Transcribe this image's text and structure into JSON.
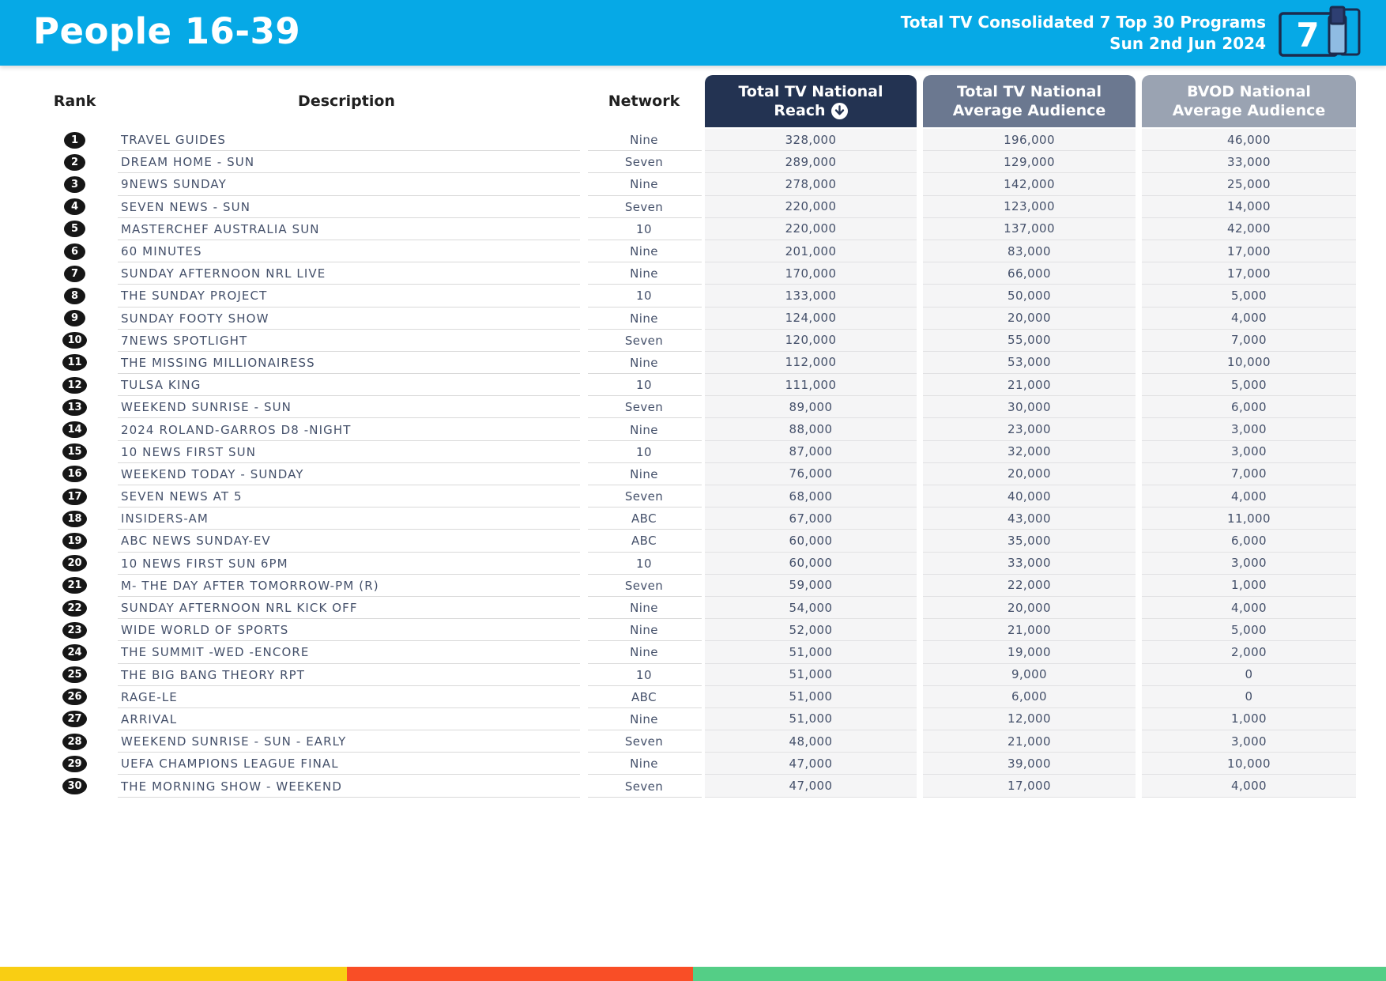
{
  "header": {
    "title": "People 16-39",
    "subtitle_line1": "Total TV Consolidated 7 Top 30 Programs",
    "subtitle_line2": "Sun 2nd Jun 2024",
    "calendar_label": "7"
  },
  "colors": {
    "header_bg": "#06a9e6",
    "reach_header_bg": "#233352",
    "avg_header_bg": "#6b7890",
    "bvod_header_bg": "#9aa3b2",
    "rank_badge_bg": "#161616",
    "cell_bg": "#f5f5f6",
    "footer_yellow": "#f9ce13",
    "footer_red": "#f94e26",
    "footer_green": "#54ce86"
  },
  "table": {
    "columns": {
      "rank": {
        "label": "Rank"
      },
      "description": {
        "label": "Description"
      },
      "network": {
        "label": "Network"
      },
      "reach": {
        "line1": "Total TV National",
        "line2": "Reach"
      },
      "avg": {
        "line1": "Total TV National",
        "line2": "Average Audience"
      },
      "bvod": {
        "line1": "BVOD National",
        "line2": "Average Audience"
      }
    },
    "sort_icon": "circle-arrow-down",
    "rows": [
      {
        "rank": "1",
        "description": "TRAVEL GUIDES",
        "network": "Nine",
        "reach": "328,000",
        "avg": "196,000",
        "bvod": "46,000"
      },
      {
        "rank": "2",
        "description": "DREAM HOME - SUN",
        "network": "Seven",
        "reach": "289,000",
        "avg": "129,000",
        "bvod": "33,000"
      },
      {
        "rank": "3",
        "description": "9NEWS SUNDAY",
        "network": "Nine",
        "reach": "278,000",
        "avg": "142,000",
        "bvod": "25,000"
      },
      {
        "rank": "4",
        "description": "SEVEN NEWS - SUN",
        "network": "Seven",
        "reach": "220,000",
        "avg": "123,000",
        "bvod": "14,000"
      },
      {
        "rank": "5",
        "description": "MASTERCHEF AUSTRALIA SUN",
        "network": "10",
        "reach": "220,000",
        "avg": "137,000",
        "bvod": "42,000"
      },
      {
        "rank": "6",
        "description": "60 MINUTES",
        "network": "Nine",
        "reach": "201,000",
        "avg": "83,000",
        "bvod": "17,000"
      },
      {
        "rank": "7",
        "description": "SUNDAY AFTERNOON NRL LIVE",
        "network": "Nine",
        "reach": "170,000",
        "avg": "66,000",
        "bvod": "17,000"
      },
      {
        "rank": "8",
        "description": "THE SUNDAY PROJECT",
        "network": "10",
        "reach": "133,000",
        "avg": "50,000",
        "bvod": "5,000"
      },
      {
        "rank": "9",
        "description": "SUNDAY FOOTY SHOW",
        "network": "Nine",
        "reach": "124,000",
        "avg": "20,000",
        "bvod": "4,000"
      },
      {
        "rank": "10",
        "description": "7NEWS SPOTLIGHT",
        "network": "Seven",
        "reach": "120,000",
        "avg": "55,000",
        "bvod": "7,000"
      },
      {
        "rank": "11",
        "description": "THE MISSING MILLIONAIRESS",
        "network": "Nine",
        "reach": "112,000",
        "avg": "53,000",
        "bvod": "10,000"
      },
      {
        "rank": "12",
        "description": "TULSA KING",
        "network": "10",
        "reach": "111,000",
        "avg": "21,000",
        "bvod": "5,000"
      },
      {
        "rank": "13",
        "description": "WEEKEND SUNRISE - SUN",
        "network": "Seven",
        "reach": "89,000",
        "avg": "30,000",
        "bvod": "6,000"
      },
      {
        "rank": "14",
        "description": "2024 ROLAND-GARROS D8 -NIGHT",
        "network": "Nine",
        "reach": "88,000",
        "avg": "23,000",
        "bvod": "3,000"
      },
      {
        "rank": "15",
        "description": "10 NEWS FIRST SUN",
        "network": "10",
        "reach": "87,000",
        "avg": "32,000",
        "bvod": "3,000"
      },
      {
        "rank": "16",
        "description": "WEEKEND TODAY - SUNDAY",
        "network": "Nine",
        "reach": "76,000",
        "avg": "20,000",
        "bvod": "7,000"
      },
      {
        "rank": "17",
        "description": "SEVEN NEWS AT 5",
        "network": "Seven",
        "reach": "68,000",
        "avg": "40,000",
        "bvod": "4,000"
      },
      {
        "rank": "18",
        "description": "INSIDERS-AM",
        "network": "ABC",
        "reach": "67,000",
        "avg": "43,000",
        "bvod": "11,000"
      },
      {
        "rank": "19",
        "description": "ABC NEWS SUNDAY-EV",
        "network": "ABC",
        "reach": "60,000",
        "avg": "35,000",
        "bvod": "6,000"
      },
      {
        "rank": "20",
        "description": "10 NEWS FIRST SUN 6PM",
        "network": "10",
        "reach": "60,000",
        "avg": "33,000",
        "bvod": "3,000"
      },
      {
        "rank": "21",
        "description": "M- THE DAY AFTER TOMORROW-PM (R)",
        "network": "Seven",
        "reach": "59,000",
        "avg": "22,000",
        "bvod": "1,000"
      },
      {
        "rank": "22",
        "description": "SUNDAY AFTERNOON NRL KICK OFF",
        "network": "Nine",
        "reach": "54,000",
        "avg": "20,000",
        "bvod": "4,000"
      },
      {
        "rank": "23",
        "description": "WIDE WORLD OF SPORTS",
        "network": "Nine",
        "reach": "52,000",
        "avg": "21,000",
        "bvod": "5,000"
      },
      {
        "rank": "24",
        "description": "THE SUMMIT -WED -ENCORE",
        "network": "Nine",
        "reach": "51,000",
        "avg": "19,000",
        "bvod": "2,000"
      },
      {
        "rank": "25",
        "description": "THE BIG BANG THEORY RPT",
        "network": "10",
        "reach": "51,000",
        "avg": "9,000",
        "bvod": "0"
      },
      {
        "rank": "26",
        "description": "RAGE-LE",
        "network": "ABC",
        "reach": "51,000",
        "avg": "6,000",
        "bvod": "0"
      },
      {
        "rank": "27",
        "description": "ARRIVAL",
        "network": "Nine",
        "reach": "51,000",
        "avg": "12,000",
        "bvod": "1,000"
      },
      {
        "rank": "28",
        "description": "WEEKEND SUNRISE - SUN - EARLY",
        "network": "Seven",
        "reach": "48,000",
        "avg": "21,000",
        "bvod": "3,000"
      },
      {
        "rank": "29",
        "description": "UEFA CHAMPIONS LEAGUE FINAL",
        "network": "Nine",
        "reach": "47,000",
        "avg": "39,000",
        "bvod": "10,000"
      },
      {
        "rank": "30",
        "description": "THE MORNING SHOW - WEEKEND",
        "network": "Seven",
        "reach": "47,000",
        "avg": "17,000",
        "bvod": "4,000"
      }
    ]
  },
  "footer": {
    "segments": [
      {
        "name": "yellow",
        "color": "#f9ce13",
        "width_pct": 25.0
      },
      {
        "name": "red",
        "color": "#f94e26",
        "width_pct": 25.0
      },
      {
        "name": "green",
        "color": "#54ce86",
        "width_pct": 50.0
      }
    ]
  }
}
